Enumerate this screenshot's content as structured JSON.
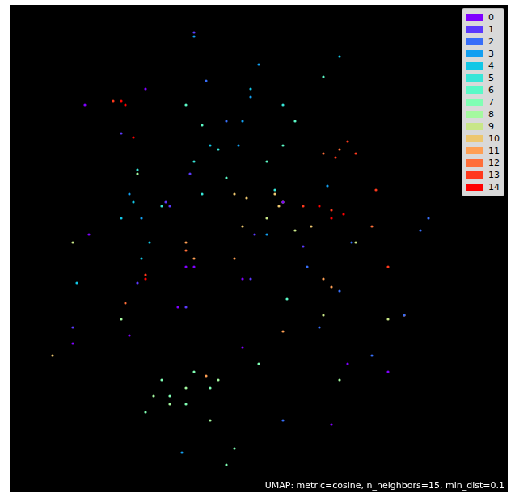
{
  "chart_data": {
    "type": "scatter",
    "annotation": "UMAP: metric=cosine, n_neighbors=15, min_dist=0.1",
    "xlim": [
      0,
      616
    ],
    "ylim": [
      0,
      603
    ],
    "grid": false,
    "tick_labels": false,
    "legend": "upper right",
    "series": [
      {
        "name": "0",
        "color": "#8000ff",
        "x": [
          93,
          218,
          228,
          288,
          418,
          468,
          398,
          98,
          208,
          338,
          148,
          288,
          78,
          168
        ],
        "y": [
          479,
          279,
          279,
          179,
          159,
          149,
          84,
          319,
          229,
          359,
          194,
          264,
          184,
          499
        ]
      },
      {
        "name": "1",
        "color": "#5b39fd",
        "x": [
          198,
          193,
          223,
          138,
          218,
          303,
          363,
          78,
          228,
          298,
          158
        ],
        "y": [
          354,
          359,
          394,
          444,
          229,
          319,
          304,
          204,
          569,
          264,
          259
        ]
      },
      {
        "name": "2",
        "color": "#376ef9",
        "x": [
          508,
          518,
          488,
          408,
          368,
          423,
          383,
          448,
          268,
          243,
          338
        ],
        "y": [
          324,
          339,
          219,
          249,
          279,
          309,
          204,
          169,
          459,
          509,
          89
        ]
      },
      {
        "name": "3",
        "color": "#129ff1",
        "x": [
          288,
          298,
          283,
          308,
          228,
          148,
          163,
          318,
          213,
          393
        ],
        "y": [
          459,
          489,
          429,
          529,
          564,
          369,
          339,
          319,
          49,
          379
        ]
      },
      {
        "name": "4",
        "color": "#12c7e6",
        "x": [
          138,
          153,
          298,
          173,
          163,
          248,
          408,
          83
        ],
        "y": [
          339,
          359,
          499,
          309,
          289,
          429,
          539,
          259
        ]
      },
      {
        "name": "5",
        "color": "#37e6d8",
        "x": [
          238,
          258,
          328,
          188,
          228,
          338,
          158
        ],
        "y": [
          369,
          424,
          374,
          354,
          409,
          479,
          399
        ]
      },
      {
        "name": "6",
        "color": "#5bf9c7",
        "x": [
          218,
          238,
          353,
          338,
          318,
          388,
          343,
          268
        ],
        "y": [
          479,
          454,
          459,
          429,
          409,
          514,
          239,
          389
        ]
      },
      {
        "name": "7",
        "color": "#80ffb4",
        "x": [
          188,
          198,
          218,
          278,
          268,
          228,
          168,
          308,
          248
        ],
        "y": [
          139,
          119,
          109,
          54,
          34,
          149,
          99,
          159,
          129
        ]
      },
      {
        "name": "8",
        "color": "#a4f99f",
        "x": [
          198,
          258,
          218,
          178,
          248,
          158,
          138,
          408
        ],
        "y": [
          109,
          139,
          129,
          119,
          89,
          394,
          214,
          139
        ]
      },
      {
        "name": "9",
        "color": "#c8e688",
        "x": [
          318,
          428,
          338,
          388,
          468,
          353,
          78
        ],
        "y": [
          339,
          309,
          359,
          219,
          214,
          324,
          309
        ]
      },
      {
        "name": "10",
        "color": "#edc76f",
        "x": [
          278,
          293,
          328,
          373,
          288,
          53,
          333
        ],
        "y": [
          369,
          364,
          369,
          329,
          329,
          169,
          354
        ]
      },
      {
        "name": "11",
        "color": "#ff9f54",
        "x": [
          218,
          388,
          398,
          243,
          338,
          278,
          228
        ],
        "y": [
          309,
          264,
          254,
          144,
          199,
          289,
          289
        ]
      },
      {
        "name": "12",
        "color": "#ff6e39",
        "x": [
          388,
          408,
          218,
          143,
          488,
          448
        ],
        "y": [
          419,
          424,
          299,
          234,
          219,
          329
        ]
      },
      {
        "name": "13",
        "color": "#ff391d",
        "x": [
          403,
          418,
          428,
          363,
          398,
          453,
          468,
          168,
          128
        ],
        "y": [
          414,
          434,
          419,
          354,
          349,
          374,
          279,
          269,
          484
        ]
      },
      {
        "name": "14",
        "color": "#ff0000",
        "x": [
          138,
          143,
          398,
          413,
          383,
          168,
          153
        ],
        "y": [
          484,
          479,
          339,
          344,
          354,
          264,
          439
        ]
      }
    ]
  }
}
